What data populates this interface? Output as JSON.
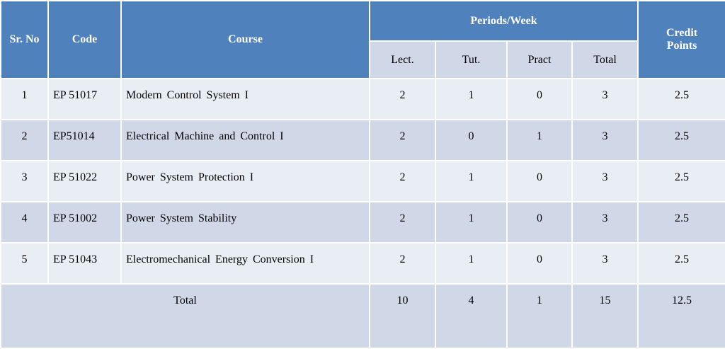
{
  "header": {
    "sr_no": "Sr. No",
    "code": "Code",
    "course": "Course",
    "periods_week": "Periods/Week",
    "credit_points": "Credit Points",
    "lect": "Lect.",
    "tut": "Tut.",
    "pract": "Pract",
    "total": "Total"
  },
  "rows": [
    {
      "sr": "1",
      "code": "EP 51017",
      "course": "Modern Control System I",
      "lect": "2",
      "tut": "1",
      "pract": "0",
      "total": "3",
      "credit": "2.5"
    },
    {
      "sr": "2",
      "code": "EP51014",
      "course": "Electrical Machine and Control I",
      "lect": "2",
      "tut": "0",
      "pract": "1",
      "total": "3",
      "credit": "2.5"
    },
    {
      "sr": "3",
      "code": "EP 51022",
      "course": "Power System Protection I",
      "lect": "2",
      "tut": "1",
      "pract": "0",
      "total": "3",
      "credit": "2.5"
    },
    {
      "sr": "4",
      "code": "EP 51002",
      "course": "Power System Stability",
      "lect": "2",
      "tut": "1",
      "pract": "0",
      "total": "3",
      "credit": "2.5"
    },
    {
      "sr": "5",
      "code": "EP 51043",
      "course": "Electromechanical Energy Conversion I",
      "lect": "2",
      "tut": "1",
      "pract": "0",
      "total": "3",
      "credit": "2.5"
    }
  ],
  "totals": {
    "label": "Total",
    "lect": "10",
    "tut": "4",
    "pract": "1",
    "total": "15",
    "credit": "12.5"
  },
  "colors": {
    "header": "#4f81bd",
    "row_light": "#e9edf4",
    "row_dark": "#d0d8e8"
  }
}
